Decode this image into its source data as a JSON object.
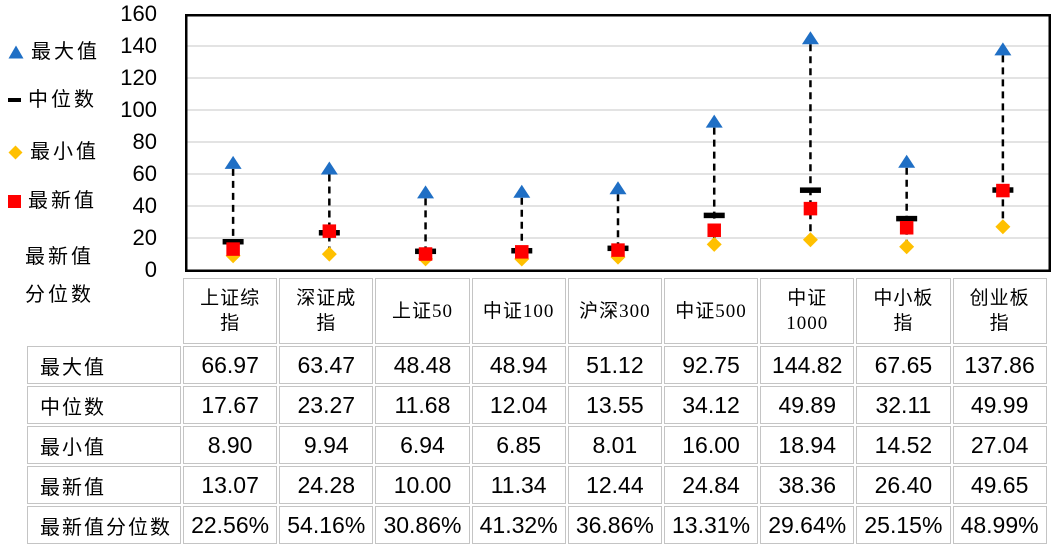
{
  "legend": {
    "items": [
      {
        "label": "最大值",
        "icon": "triangle-up",
        "color": "#1F6FC5"
      },
      {
        "label": "中位数",
        "icon": "dash",
        "color": "#000000"
      },
      {
        "label": "最小值",
        "icon": "diamond",
        "color": "#FFC000"
      },
      {
        "label": "最新值",
        "icon": "square",
        "color": "#FF0000"
      },
      {
        "label": "最新值\n分位数",
        "icon": "none",
        "color": ""
      }
    ]
  },
  "chart_data": {
    "type": "stock-high-low",
    "title": "",
    "xlabel": "",
    "ylabel": "",
    "ylim": [
      0,
      160
    ],
    "yticks": [
      0,
      20,
      40,
      60,
      80,
      100,
      120,
      140,
      160
    ],
    "grid": true,
    "legend_position": "left",
    "categories": [
      "上证综指",
      "深证成指",
      "上证50",
      "中证100",
      "沪深300",
      "中证500",
      "中证1000",
      "中小板指",
      "创业板指"
    ],
    "category_display": [
      "上证综\n指",
      "深证成\n指",
      "上证50",
      "中证100",
      "沪深300",
      "中证500",
      "中证\n1000",
      "中小板\n指",
      "创业板\n指"
    ],
    "series": [
      {
        "name": "最大值",
        "marker": "triangle-up",
        "color": "#1F6FC5",
        "values": [
          66.97,
          63.47,
          48.48,
          48.94,
          51.12,
          92.75,
          144.82,
          67.65,
          137.86
        ]
      },
      {
        "name": "中位数",
        "marker": "dash",
        "color": "#000000",
        "values": [
          17.67,
          23.27,
          11.68,
          12.04,
          13.55,
          34.12,
          49.89,
          32.11,
          49.99
        ]
      },
      {
        "name": "最小值",
        "marker": "diamond",
        "color": "#FFC000",
        "values": [
          8.9,
          9.94,
          6.94,
          6.85,
          8.01,
          16.0,
          18.94,
          14.52,
          27.04
        ]
      },
      {
        "name": "最新值",
        "marker": "square",
        "color": "#FF0000",
        "values": [
          13.07,
          24.28,
          10.0,
          11.34,
          12.44,
          24.84,
          38.36,
          26.4,
          49.65
        ]
      }
    ]
  },
  "table": {
    "rows": [
      {
        "label": "最大值",
        "values": [
          "66.97",
          "63.47",
          "48.48",
          "48.94",
          "51.12",
          "92.75",
          "144.82",
          "67.65",
          "137.86"
        ]
      },
      {
        "label": "中位数",
        "values": [
          "17.67",
          "23.27",
          "11.68",
          "12.04",
          "13.55",
          "34.12",
          "49.89",
          "32.11",
          "49.99"
        ]
      },
      {
        "label": "最小值",
        "values": [
          "8.90",
          "9.94",
          "6.94",
          "6.85",
          "8.01",
          "16.00",
          "18.94",
          "14.52",
          "27.04"
        ]
      },
      {
        "label": "最新值",
        "values": [
          "13.07",
          "24.28",
          "10.00",
          "11.34",
          "12.44",
          "24.84",
          "38.36",
          "26.40",
          "49.65"
        ]
      },
      {
        "label": "最新值分位数",
        "values": [
          "22.56%",
          "54.16%",
          "30.86%",
          "41.32%",
          "36.86%",
          "13.31%",
          "29.64%",
          "25.15%",
          "48.99%"
        ]
      }
    ]
  },
  "colors": {
    "max_marker": "#1F6FC5",
    "median_marker": "#000000",
    "min_marker": "#FFC000",
    "latest_marker": "#FF0000",
    "hilo_line": "#000000",
    "gridline": "#DADADA",
    "plot_border": "#000000",
    "table_border": "#C4C4C4"
  }
}
